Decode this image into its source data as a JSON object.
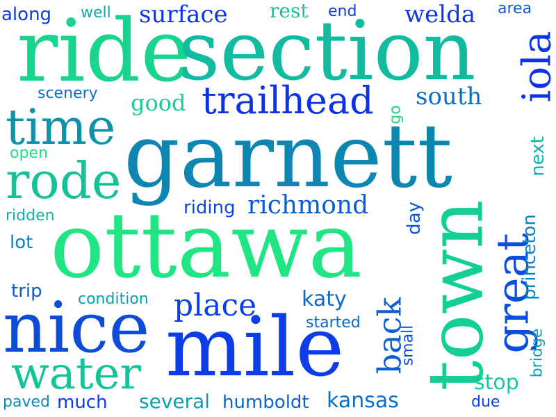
{
  "words": [
    {
      "text": "garnett",
      "color": "#0d86b2"
    },
    {
      "text": "ottawa",
      "color": "#1fe583"
    },
    {
      "text": "ride",
      "color": "#17d58d"
    },
    {
      "text": "section",
      "color": "#10bba0"
    },
    {
      "text": "mile",
      "color": "#0c3de7"
    },
    {
      "text": "nice",
      "color": "#0e4bd6"
    },
    {
      "text": "town",
      "color": "#12cf94"
    },
    {
      "text": "time",
      "color": "#0f93a9"
    },
    {
      "text": "rode",
      "color": "#15c196"
    },
    {
      "text": "trailhead",
      "color": "#0b33e3"
    },
    {
      "text": "iola",
      "color": "#0c33ea"
    },
    {
      "text": "water",
      "color": "#15c496"
    },
    {
      "text": "great",
      "color": "#0c4fe0"
    },
    {
      "text": "place",
      "color": "#0c3fe6"
    },
    {
      "text": "back",
      "color": "#0d5fd4"
    },
    {
      "text": "surface",
      "color": "#0c36e6"
    },
    {
      "text": "welda",
      "color": "#0b37e7"
    },
    {
      "text": "richmond",
      "color": "#0c5ecf"
    },
    {
      "text": "south",
      "color": "#0d6bc4"
    },
    {
      "text": "good",
      "color": "#1bd08e"
    },
    {
      "text": "princeton",
      "color": "#0e82be"
    },
    {
      "text": "katy",
      "color": "#0c6bc7"
    },
    {
      "text": "kansas",
      "color": "#0d6fc6"
    },
    {
      "text": "stop",
      "color": "#1ac69c"
    },
    {
      "text": "several",
      "color": "#0e9cb0"
    },
    {
      "text": "humboldt",
      "color": "#0c63cb"
    },
    {
      "text": "rest",
      "color": "#14c29a"
    },
    {
      "text": "next",
      "color": "#11b3a6"
    },
    {
      "text": "riding",
      "color": "#0e49de"
    },
    {
      "text": "along",
      "color": "#0c3be8"
    },
    {
      "text": "well",
      "color": "#0fa8a9"
    },
    {
      "text": "end",
      "color": "#0f41e3"
    },
    {
      "text": "area",
      "color": "#0c5dd3"
    },
    {
      "text": "scenery",
      "color": "#0e6dd0"
    },
    {
      "text": "go",
      "color": "#1fd78b"
    },
    {
      "text": "open",
      "color": "#21df86"
    },
    {
      "text": "ridden",
      "color": "#1ab2a3"
    },
    {
      "text": "lot",
      "color": "#0f7fc3"
    },
    {
      "text": "day",
      "color": "#0c58d3"
    },
    {
      "text": "trip",
      "color": "#0f5ad1"
    },
    {
      "text": "condition",
      "color": "#0f9db3"
    },
    {
      "text": "started",
      "color": "#0c67c8"
    },
    {
      "text": "small",
      "color": "#0e47de"
    },
    {
      "text": "bridge",
      "color": "#0f9eb2"
    },
    {
      "text": "paved",
      "color": "#0e8bbc"
    },
    {
      "text": "much",
      "color": "#0c3bea"
    },
    {
      "text": "due",
      "color": "#0b46e0"
    }
  ]
}
